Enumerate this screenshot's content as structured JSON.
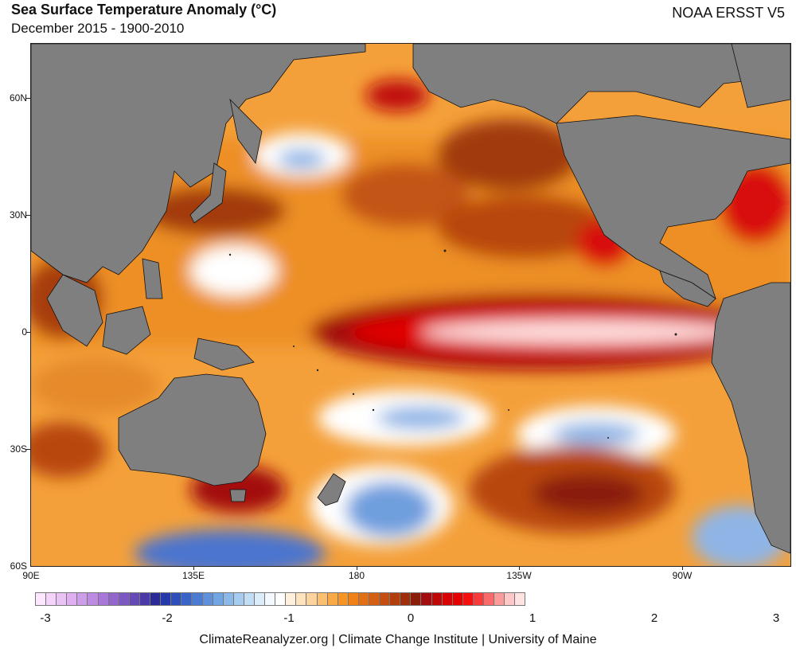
{
  "header": {
    "title": "Sea Surface Temperature Anomaly (°C)",
    "subtitle": "December 2015 - 1900-2010",
    "dataset": "NOAA ERSST V5"
  },
  "map": {
    "region": "Pacific Ocean",
    "lat_labels": [
      "60N",
      "30N",
      "0",
      "30S",
      "60S"
    ],
    "lon_labels": [
      "90E",
      "135E",
      "180",
      "135W",
      "90W"
    ],
    "land_color": "#7f7f7f",
    "notable_features": [
      "Strong El Niño warm anomaly along equatorial eastern Pacific",
      "Cool anomalies south of the equator and in the North Pacific"
    ]
  },
  "colorbar": {
    "tick_labels": [
      "-3",
      "-2",
      "-1",
      "0",
      "1",
      "2",
      "3"
    ],
    "colors": [
      "#fde6ff",
      "#f5d4fb",
      "#eac2f6",
      "#deb0f1",
      "#cf9eeb",
      "#bd8be3",
      "#a977d9",
      "#9366ce",
      "#7c58c2",
      "#6549b6",
      "#4a3aa8",
      "#2a2a99",
      "#253aa8",
      "#2d4fbb",
      "#3a65c8",
      "#4b7bd2",
      "#5e90db",
      "#72a5e3",
      "#8bb9ea",
      "#a6ccf0",
      "#c2def6",
      "#dcedfa",
      "#f4f9ff",
      "#ffffff",
      "#fff0db",
      "#fee3bf",
      "#fdd39d",
      "#fbbf70",
      "#f9a946",
      "#f69523",
      "#ef8117",
      "#e36f14",
      "#d45e12",
      "#c44d10",
      "#b23d0d",
      "#9f2e0b",
      "#8a1e08",
      "#a40d0d",
      "#c00707",
      "#d70404",
      "#e60000",
      "#f51010",
      "#f83a3a",
      "#fb6a6a",
      "#fd9a9a",
      "#fec8c8",
      "#ffe2e2"
    ]
  },
  "footer": {
    "credit": "ClimateReanalyzer.org | Climate Change Institute | University of Maine"
  }
}
